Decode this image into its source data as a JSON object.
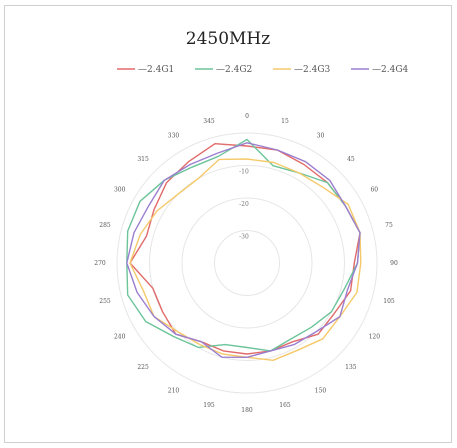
{
  "chart_data": {
    "type": "radar",
    "title": "2450MHz",
    "angle_labels": [
      "0",
      "15",
      "30",
      "45",
      "60",
      "75",
      "90",
      "105",
      "120",
      "135",
      "150",
      "165",
      "180",
      "195",
      "210",
      "225",
      "240",
      "255",
      "270",
      "285",
      "300",
      "315",
      "330",
      "345"
    ],
    "radial_ticks": [
      -30,
      -20,
      -10
    ],
    "rlim": [
      -40,
      0
    ],
    "grid": true,
    "legend_position": "top",
    "series": [
      {
        "name": "2.4G1",
        "color": "#e26a6a",
        "values": [
          -4,
          -4,
          -5,
          -5,
          -5,
          -4,
          -7,
          -7,
          -9,
          -9,
          -12,
          -12,
          -12,
          -12,
          -12,
          -9,
          -10,
          -10,
          -4,
          -8,
          -7,
          -5,
          -4,
          -2
        ]
      },
      {
        "name": "2.4G2",
        "color": "#6cc49a",
        "values": [
          -2,
          -9,
          -8,
          -5,
          -5,
          -4,
          -6,
          -9,
          -10,
          -12,
          -13,
          -12,
          -14,
          -14,
          -10,
          -8,
          -4,
          -2,
          -3,
          -2,
          -2,
          -4,
          -6,
          -6
        ]
      },
      {
        "name": "2.4G3",
        "color": "#f5c96a",
        "values": [
          -8,
          -8,
          -8,
          -7,
          -4,
          -4,
          -5,
          -5,
          -7,
          -7,
          -9,
          -9,
          -11,
          -11,
          -11,
          -10,
          -7,
          -7,
          -4,
          -6,
          -8,
          -10,
          -10,
          -7
        ]
      },
      {
        "name": "2.4G4",
        "color": "#9b7fcf",
        "values": [
          -3,
          -4,
          -4,
          -4,
          -5,
          -4,
          -6,
          -8,
          -7,
          -10,
          -11,
          -12,
          -11,
          -10,
          -12,
          -9,
          -7,
          -5,
          -3,
          -4,
          -5,
          -4,
          -5,
          -5
        ]
      }
    ]
  }
}
